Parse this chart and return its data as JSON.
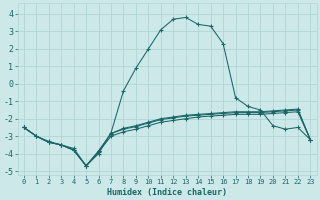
{
  "xlabel": "Humidex (Indice chaleur)",
  "bg_color": "#cce8e8",
  "grid_color": "#b0d4d4",
  "line_color": "#1a6666",
  "xlim": [
    -0.5,
    23.5
  ],
  "ylim": [
    -5.2,
    4.6
  ],
  "yticks": [
    -5,
    -4,
    -3,
    -2,
    -1,
    0,
    1,
    2,
    3,
    4
  ],
  "xticks": [
    0,
    1,
    2,
    3,
    4,
    5,
    6,
    7,
    8,
    9,
    10,
    11,
    12,
    13,
    14,
    15,
    16,
    17,
    18,
    19,
    20,
    21,
    22,
    23
  ],
  "series": [
    {
      "x": [
        0,
        1,
        2,
        3,
        4,
        5,
        6,
        7,
        8,
        9,
        10,
        11,
        12,
        13,
        14,
        15,
        16,
        17,
        18,
        19,
        20,
        21,
        22,
        23
      ],
      "y": [
        -2.5,
        -3.0,
        -3.3,
        -3.5,
        -3.7,
        -4.7,
        -4.0,
        -2.8,
        -0.4,
        0.9,
        2.0,
        3.1,
        3.7,
        3.8,
        3.4,
        3.3,
        2.3,
        -0.8,
        -1.3,
        -1.5,
        -2.4,
        -2.6,
        -2.5,
        -3.2
      ]
    },
    {
      "x": [
        0,
        1,
        2,
        3,
        4,
        5,
        6,
        7,
        8,
        9,
        10,
        11,
        12,
        13,
        14,
        15,
        16,
        17,
        18,
        19,
        20,
        21,
        22,
        23
      ],
      "y": [
        -2.5,
        -3.0,
        -3.35,
        -3.5,
        -3.8,
        -4.7,
        -3.9,
        -3.0,
        -2.75,
        -2.6,
        -2.4,
        -2.2,
        -2.1,
        -2.0,
        -1.9,
        -1.85,
        -1.8,
        -1.75,
        -1.75,
        -1.75,
        -1.7,
        -1.65,
        -1.6,
        -3.2
      ]
    },
    {
      "x": [
        0,
        1,
        2,
        3,
        4,
        5,
        6,
        7,
        8,
        9,
        10,
        11,
        12,
        13,
        14,
        15,
        16,
        17,
        18,
        19,
        20,
        21,
        22,
        23
      ],
      "y": [
        -2.5,
        -3.0,
        -3.35,
        -3.5,
        -3.8,
        -4.7,
        -3.85,
        -2.85,
        -2.6,
        -2.45,
        -2.25,
        -2.05,
        -1.95,
        -1.85,
        -1.8,
        -1.75,
        -1.7,
        -1.65,
        -1.65,
        -1.65,
        -1.6,
        -1.55,
        -1.5,
        -3.2
      ]
    },
    {
      "x": [
        0,
        1,
        2,
        3,
        4,
        5,
        6,
        7,
        8,
        9,
        10,
        11,
        12,
        13,
        14,
        15,
        16,
        17,
        18,
        19,
        20,
        21,
        22,
        23
      ],
      "y": [
        -2.5,
        -3.0,
        -3.35,
        -3.5,
        -3.8,
        -4.7,
        -3.85,
        -2.85,
        -2.55,
        -2.4,
        -2.2,
        -2.0,
        -1.9,
        -1.8,
        -1.75,
        -1.7,
        -1.65,
        -1.6,
        -1.6,
        -1.6,
        -1.55,
        -1.5,
        -1.45,
        -3.2
      ]
    }
  ]
}
